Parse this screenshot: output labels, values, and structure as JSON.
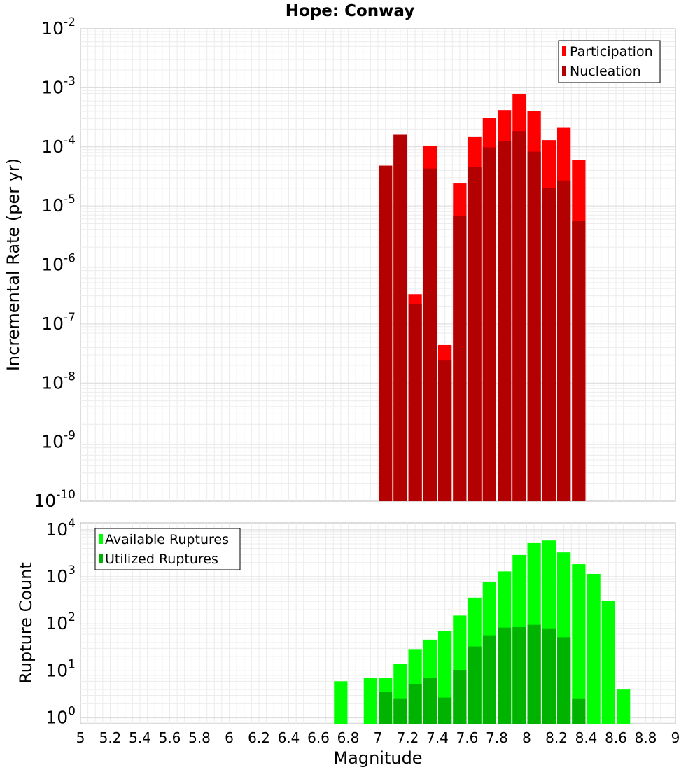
{
  "title": "Hope: Conway",
  "chart_data": [
    {
      "type": "bar",
      "id": "rates",
      "ylabel": "Incremental Rate (per yr)",
      "xlabel": "",
      "yscale": "log",
      "ylim": [
        1e-10,
        0.01
      ],
      "xlim": [
        5,
        9
      ],
      "grid": true,
      "legend_position": "top-right",
      "bin_width": 0.1,
      "x": [
        7.05,
        7.15,
        7.25,
        7.35,
        7.45,
        7.55,
        7.65,
        7.75,
        7.85,
        7.95,
        8.05,
        8.15,
        8.25,
        8.35
      ],
      "series": [
        {
          "name": "Participation",
          "color": "#ff0000",
          "values": [
            4.8e-05,
            0.00016,
            3.2e-07,
            0.000105,
            4.4e-08,
            2.4e-05,
            0.00015,
            0.00031,
            0.00042,
            0.00078,
            0.00041,
            0.00013,
            0.00021,
            6e-05
          ]
        },
        {
          "name": "Nucleation",
          "color": "#b30000",
          "values": [
            4.8e-05,
            0.00016,
            2.2e-07,
            4.3e-05,
            2.4e-08,
            6.8e-06,
            4.5e-05,
            9.8e-05,
            0.000125,
            0.000185,
            8.3e-05,
            2e-05,
            2.7e-05,
            5.5e-06
          ]
        }
      ]
    },
    {
      "type": "bar",
      "id": "counts",
      "ylabel": "Rupture Count",
      "xlabel": "Magnitude",
      "yscale": "log",
      "ylim": [
        0.75,
        14000
      ],
      "xlim": [
        5,
        9
      ],
      "grid": true,
      "legend_position": "top-left",
      "bin_width": 0.1,
      "x_ticks": [
        "5",
        "5.2",
        "5.4",
        "5.6",
        "5.8",
        "6",
        "6.2",
        "6.4",
        "6.6",
        "6.8",
        "7",
        "7.2",
        "7.4",
        "7.6",
        "7.8",
        "8",
        "8.2",
        "8.4",
        "8.6",
        "8.8",
        "9"
      ],
      "x": [
        6.75,
        6.95,
        7.05,
        7.15,
        7.25,
        7.35,
        7.45,
        7.55,
        7.65,
        7.75,
        7.85,
        7.95,
        8.05,
        8.15,
        8.25,
        8.35,
        8.45,
        8.55,
        8.65
      ],
      "series": [
        {
          "name": "Available Ruptures",
          "color": "#00ff00",
          "values": [
            6,
            7,
            7,
            14,
            29,
            46,
            70,
            150,
            360,
            760,
            1300,
            2900,
            5200,
            5900,
            3300,
            1850,
            1150,
            310,
            4
          ]
        },
        {
          "name": "Utilized Ruptures",
          "color": "#00b300",
          "values": [
            0,
            0,
            3.5,
            2.6,
            5.3,
            7,
            2.7,
            10.5,
            33,
            57,
            83,
            85,
            95,
            80,
            52,
            2.6,
            0,
            0,
            0
          ]
        }
      ]
    }
  ]
}
